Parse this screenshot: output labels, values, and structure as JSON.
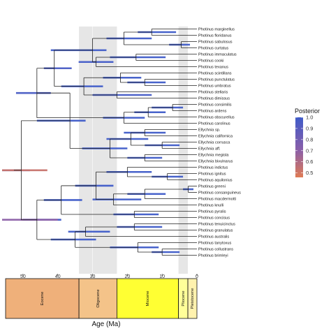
{
  "chart_data": {
    "type": "phylogeny",
    "xlabel": "Age (Ma)",
    "x_ticks": [
      50,
      40,
      30,
      20,
      10,
      0
    ],
    "xlim": [
      55,
      0
    ],
    "legend": {
      "title": "Posterior",
      "ticks": [
        "1.0",
        "0.9",
        "0.8",
        "0.7",
        "0.6",
        "0.5"
      ],
      "tick_values": [
        1.0,
        0.9,
        0.8,
        0.7,
        0.6,
        0.5
      ],
      "range": [
        0.46,
        1.0
      ],
      "color_low": "#E07B54",
      "color_mid": "#8B5FA8",
      "color_high": "#3F5BC9"
    },
    "shaded_periods": [
      {
        "name": "Oligocene",
        "start": 33.9,
        "end": 23.0
      },
      {
        "name": "Pliocene",
        "start": 5.3,
        "end": 2.6
      }
    ],
    "epochs": [
      {
        "name": "Eocene",
        "start": 55,
        "end": 33.9,
        "color": "#EFB07A"
      },
      {
        "name": "Oligocene",
        "start": 33.9,
        "end": 23.0,
        "color": "#F4C389"
      },
      {
        "name": "Miocene",
        "start": 23.0,
        "end": 5.3,
        "color": "#FFFF33"
      },
      {
        "name": "Pliocene",
        "start": 5.3,
        "end": 2.6,
        "color": "#FFFF99"
      },
      {
        "name": "Pleistocene",
        "start": 2.6,
        "end": 0.0,
        "color": "#FFF2AE"
      }
    ],
    "tips": [
      "Photinus marginellus",
      "Photinus floridanus",
      "Photinus sabulosus",
      "Photinus curtatus",
      "Photinus immaculatus",
      "Photinus cooki",
      "Photinus texanus",
      "Photinus scintillans",
      "Photinus punctulatus",
      "Photinus umbratus",
      "Photinus stellaris",
      "Photinus dimissus",
      "Photinus consimilis",
      "Photinus ardens",
      "Photinus obscurellus",
      "Photinus carolinus",
      "Ellychnia sp.",
      "Ellychnia californica",
      "Ellychnia corrusca",
      "Ellychnia aff.",
      "Ellychnia megista",
      "Ellychnia bivulnarus",
      "Photinus indictus",
      "Photinus ignitus",
      "Photinus aquilonius",
      "Photinus greeni",
      "Photinus consanguineus",
      "Photinus macdermotti",
      "Photinus knulli",
      "Photinus pyralis",
      "Photinus concisus",
      "Photinus tenuicinctus",
      "Photinus granulatus",
      "Photinus australis",
      "Photinus tanytoxus",
      "Photinus collustrans",
      "Photinus brimleyi"
    ],
    "nodes": [
      {
        "id": "n1",
        "children": [
          0,
          1
        ],
        "age": 13.0,
        "hpd": [
          6,
          17
        ],
        "posterior": 1.0
      },
      {
        "id": "n2",
        "children": [
          2,
          3
        ],
        "age": 4.5,
        "hpd": [
          2,
          8
        ],
        "posterior": 1.0
      },
      {
        "id": "n3",
        "children": [
          "n1",
          "n2"
        ],
        "age": 21.0,
        "hpd": [
          13,
          26
        ],
        "posterior": 1.0
      },
      {
        "id": "n4",
        "children": [
          4,
          5
        ],
        "age": 17.5,
        "hpd": [
          9,
          25
        ],
        "posterior": 1.0
      },
      {
        "id": "n5",
        "children": [
          "n4",
          6
        ],
        "age": 29.0,
        "hpd": [
          24,
          34
        ],
        "posterior": 0.99
      },
      {
        "id": "n6",
        "children": [
          "n3",
          "n5"
        ],
        "age": 30.0,
        "hpd": [
          26,
          42
        ],
        "posterior": 1.0
      },
      {
        "id": "n7",
        "children": [
          8,
          9
        ],
        "age": 15.0,
        "hpd": [
          9,
          20
        ],
        "posterior": 1.0
      },
      {
        "id": "n8",
        "children": [
          7,
          "n7"
        ],
        "age": 22.0,
        "hpd": [
          16,
          27
        ],
        "posterior": 1.0
      },
      {
        "id": "n9",
        "children": [
          10,
          11
        ],
        "age": 23.0,
        "hpd": [
          13,
          30
        ],
        "posterior": 0.98
      },
      {
        "id": "n10",
        "children": [
          "n8",
          "n9"
        ],
        "age": 32.5,
        "hpd": [
          27,
          39
        ],
        "posterior": 1.0
      },
      {
        "id": "n11",
        "children": [
          "n6",
          "n10"
        ],
        "age": 41.0,
        "hpd": [
          36,
          44
        ],
        "posterior": 0.96
      },
      {
        "id": "n12",
        "children": [
          12,
          13
        ],
        "age": 7.0,
        "hpd": [
          4,
          13
        ],
        "posterior": 1.0
      },
      {
        "id": "n13",
        "children": [
          "n12",
          14
        ],
        "age": 14.0,
        "hpd": [
          9,
          18
        ],
        "posterior": 1.0
      },
      {
        "id": "n14",
        "children": [
          "n13",
          15
        ],
        "age": 21.0,
        "hpd": [
          15,
          27
        ],
        "posterior": 1.0
      },
      {
        "id": "n15",
        "children": [
          "n11",
          "n14"
        ],
        "age": 46.0,
        "hpd": [
          42,
          52
        ],
        "posterior": 0.96
      },
      {
        "id": "n16",
        "children": [
          16,
          17
        ],
        "age": 15.0,
        "hpd": [
          9,
          21
        ],
        "posterior": 1.0
      },
      {
        "id": "n17",
        "children": [
          18,
          19
        ],
        "age": 10.0,
        "hpd": [
          5,
          15
        ],
        "posterior": 1.0
      },
      {
        "id": "n18",
        "children": [
          "n16",
          "n17"
        ],
        "age": 19.0,
        "hpd": [
          14,
          26
        ],
        "posterior": 1.0
      },
      {
        "id": "n19",
        "children": [
          20,
          21
        ],
        "age": 15.0,
        "hpd": [
          10,
          20
        ],
        "posterior": 1.0
      },
      {
        "id": "n20",
        "children": [
          "n18",
          "n19"
        ],
        "age": 25.0,
        "hpd": [
          20,
          33
        ],
        "posterior": 1.0
      },
      {
        "id": "n21",
        "children": [
          "n15",
          "n20"
        ],
        "age": 36.5,
        "hpd": [
          32,
          46
        ],
        "posterior": 1.0
      },
      {
        "id": "n22",
        "children": [
          23,
          24
        ],
        "age": 8.5,
        "hpd": [
          4,
          13
        ],
        "posterior": 1.0
      },
      {
        "id": "n23",
        "children": [
          22,
          "n22"
        ],
        "age": 20.0,
        "hpd": [
          13,
          26
        ],
        "posterior": 1.0
      },
      {
        "id": "n24",
        "children": [
          25,
          26
        ],
        "age": 2.5,
        "hpd": [
          1,
          4
        ],
        "posterior": 1.0
      },
      {
        "id": "n25",
        "children": [
          "n24",
          27
        ],
        "age": 15.0,
        "hpd": [
          9,
          20
        ],
        "posterior": 1.0
      },
      {
        "id": "n26",
        "children": [
          "n25",
          28
        ],
        "age": 24.0,
        "hpd": [
          16,
          30
        ],
        "posterior": 1.0
      },
      {
        "id": "n27",
        "children": [
          "n23",
          "n26"
        ],
        "age": 29.0,
        "hpd": [
          24,
          35
        ],
        "posterior": 1.0
      },
      {
        "id": "n28",
        "children": [
          29,
          30
        ],
        "age": 18.0,
        "hpd": [
          11,
          24
        ],
        "posterior": 1.0
      },
      {
        "id": "n29",
        "children": [
          "n27",
          "n28"
        ],
        "age": 39.0,
        "hpd": [
          33,
          44
        ],
        "posterior": 1.0
      },
      {
        "id": "n30",
        "children": [
          31,
          32
        ],
        "age": 18.0,
        "hpd": [
          10,
          23
        ],
        "posterior": 1.0
      },
      {
        "id": "n31",
        "children": [
          "n30",
          33
        ],
        "age": 32.0,
        "hpd": [
          25,
          37
        ],
        "posterior": 1.0
      },
      {
        "id": "n32",
        "children": [
          35,
          36
        ],
        "age": 10.0,
        "hpd": [
          5,
          13
        ],
        "posterior": 1.0
      },
      {
        "id": "n33",
        "children": [
          34,
          "n32"
        ],
        "age": 17.0,
        "hpd": [
          11,
          25
        ],
        "posterior": 1.0
      },
      {
        "id": "n34",
        "children": [
          "n31",
          "n33"
        ],
        "age": 35.0,
        "hpd": [
          29,
          42
        ],
        "posterior": 1.0
      },
      {
        "id": "n35",
        "children": [
          "n29",
          "n34"
        ],
        "age": 46.0,
        "hpd": [
          39,
          50
        ],
        "posterior": 1.0
      },
      {
        "id": "n36",
        "children": [
          "n35"
        ],
        "age": 50.0,
        "hpd": [
          40,
          56
        ],
        "posterior": 0.7
      },
      {
        "id": "n37",
        "children": [
          "n21",
          "n36"
        ],
        "age": 50.5,
        "hpd": [
          48,
          56
        ],
        "posterior": 0.96
      },
      {
        "id": "n38",
        "children": [
          "n37"
        ],
        "age": 52.0,
        "hpd": [
          43,
          56
        ],
        "posterior": 0.53
      }
    ]
  }
}
